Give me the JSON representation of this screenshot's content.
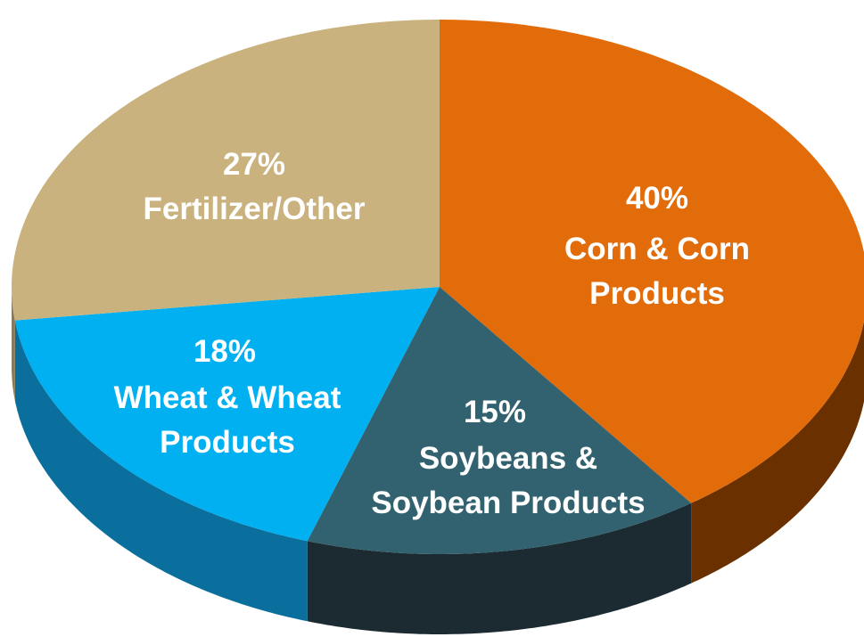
{
  "chart_data": {
    "type": "pie",
    "view": "3d",
    "categories": [
      "Corn & Corn Products",
      "Soybeans & Soybean Products",
      "Wheat & Wheat Products",
      "Fertilizer/Other"
    ],
    "values": [
      40,
      15,
      18,
      27
    ],
    "value_labels": [
      "40%",
      "15%",
      "18%",
      "27%"
    ],
    "colors": [
      "#e36c0a",
      "#32626f",
      "#00b0f0",
      "#c9b27e"
    ],
    "side_colors": [
      "#6b3000",
      "#1c2b31",
      "#0a6f9c",
      "#8c7b52"
    ]
  }
}
